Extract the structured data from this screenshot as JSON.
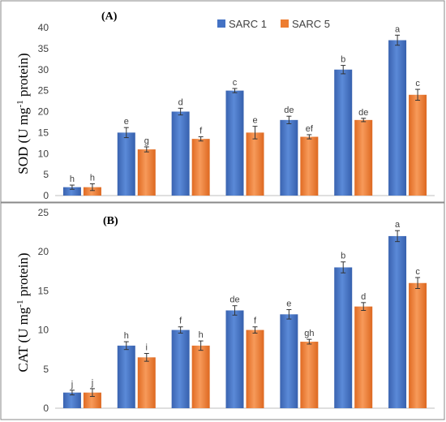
{
  "chart_data": [
    {
      "type": "bar",
      "panel_label": "(A)",
      "ylabel": "SOD (U mg",
      "ylabel_sup": "-1",
      "ylabel_tail": " protein)",
      "ylim": [
        0,
        40
      ],
      "yticks": [
        0,
        5,
        10,
        15,
        20,
        25,
        30,
        35,
        40
      ],
      "categories": [
        "",
        "",
        "",
        "",
        "",
        "",
        ""
      ],
      "legend": {
        "placement": "top",
        "items": [
          "SARC 1",
          "SARC 5"
        ]
      },
      "series": [
        {
          "name": "SARC 1",
          "color": "#4472c4",
          "values": [
            2,
            15,
            20,
            25,
            18,
            30,
            37
          ],
          "errors": [
            0.5,
            1.2,
            0.8,
            0.5,
            0.9,
            1.0,
            1.2
          ],
          "labels": [
            "h",
            "e",
            "d",
            "c",
            "de",
            "b",
            "a"
          ]
        },
        {
          "name": "SARC 5",
          "color": "#ed7d31",
          "values": [
            2,
            11,
            13.5,
            15,
            14,
            18,
            24
          ],
          "errors": [
            0.8,
            0.6,
            0.5,
            1.5,
            0.5,
            0.4,
            1.3
          ],
          "labels": [
            "h",
            "g",
            "f",
            "e",
            "ef",
            "de",
            "c"
          ]
        }
      ]
    },
    {
      "type": "bar",
      "panel_label": "(B)",
      "ylabel": "CAT (U mg",
      "ylabel_sup": "-1",
      "ylabel_tail": " protein)",
      "ylim": [
        0,
        25
      ],
      "yticks": [
        0,
        5,
        10,
        15,
        20,
        25
      ],
      "categories": [
        "",
        "",
        "",
        "",
        "",
        "",
        ""
      ],
      "legend": {
        "placement": "none",
        "items": []
      },
      "series": [
        {
          "name": "SARC 1",
          "color": "#4472c4",
          "values": [
            2,
            8,
            10,
            12.5,
            12,
            18,
            22
          ],
          "errors": [
            0.3,
            0.5,
            0.4,
            0.6,
            0.6,
            0.7,
            0.7
          ],
          "labels": [
            "j",
            "h",
            "f",
            "de",
            "e",
            "b",
            "a"
          ]
        },
        {
          "name": "SARC 5",
          "color": "#ed7d31",
          "values": [
            2,
            6.5,
            8,
            10,
            8.5,
            13,
            16
          ],
          "errors": [
            0.5,
            0.5,
            0.6,
            0.4,
            0.3,
            0.5,
            0.7
          ],
          "labels": [
            "j",
            "i",
            "h",
            "f",
            "gh",
            "d",
            "c"
          ]
        }
      ]
    }
  ]
}
